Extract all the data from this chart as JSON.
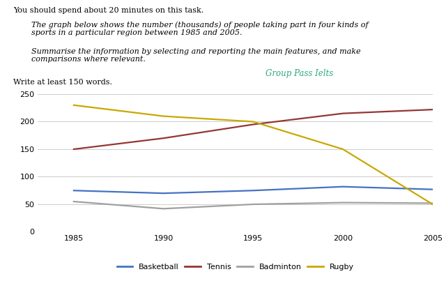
{
  "years": [
    1985,
    1990,
    1995,
    2000,
    2005
  ],
  "basketball": [
    75,
    70,
    75,
    82,
    77
  ],
  "tennis": [
    150,
    170,
    195,
    215,
    222
  ],
  "badminton": [
    55,
    42,
    50,
    53,
    52
  ],
  "rugby": [
    230,
    210,
    200,
    150,
    50
  ],
  "colors": {
    "basketball": "#4472C4",
    "tennis": "#943634",
    "badminton": "#A0A0A0",
    "rugby": "#C8A800"
  },
  "ylim": [
    0,
    250
  ],
  "yticks": [
    0,
    50,
    100,
    150,
    200,
    250
  ],
  "xticks": [
    1985,
    1990,
    1995,
    2000,
    2005
  ],
  "header_line1": "You should spend about 20 minutes on this task.",
  "header_line2": "The graph below shows the number (thousands) of people taking part in four kinds of\nsports in a particular region between 1985 and 2005.",
  "header_line3": "Summarise the information by selecting and reporting the main features, and make\ncomparisons where relevant.",
  "watermark": "Group Pass Ielts",
  "watermark_color": "#2EAA7B",
  "footer": "Write at least 150 words.",
  "bg_color": "#FFFFFF",
  "grid_color": "#CCCCCC",
  "line_width": 1.6
}
